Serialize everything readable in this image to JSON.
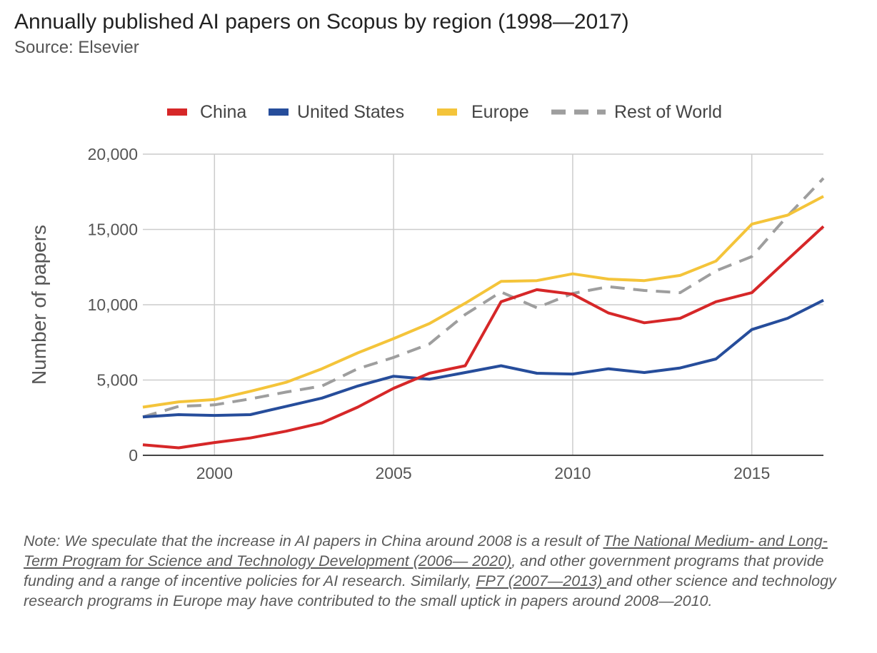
{
  "header": {
    "title": "Annually published AI papers on Scopus by region (1998—2017)",
    "subtitle": "Source: Elsevier"
  },
  "chart_data": {
    "type": "line",
    "title": "Annually published AI papers on Scopus by region (1998—2017)",
    "xlabel": "",
    "ylabel": "Number of papers",
    "x": [
      1998,
      1999,
      2000,
      2001,
      2002,
      2003,
      2004,
      2005,
      2006,
      2007,
      2008,
      2009,
      2010,
      2011,
      2012,
      2013,
      2014,
      2015,
      2016,
      2017
    ],
    "xlim": [
      1998,
      2017
    ],
    "ylim": [
      0,
      20000
    ],
    "x_ticks": [
      2000,
      2005,
      2010,
      2015
    ],
    "x_tick_labels": [
      "2000",
      "2005",
      "2010",
      "2015"
    ],
    "y_ticks": [
      0,
      5000,
      10000,
      15000,
      20000
    ],
    "y_tick_labels": [
      "0",
      "5,000",
      "10,000",
      "15,000",
      "20,000"
    ],
    "grid": true,
    "legend_position": "top",
    "series": [
      {
        "name": "China",
        "color": "#d62728",
        "dash": false,
        "values": [
          700,
          500,
          850,
          1150,
          1600,
          2150,
          3200,
          4450,
          5450,
          5950,
          10200,
          11000,
          10700,
          9450,
          8800,
          9100,
          10200,
          10800,
          13000,
          15200
        ]
      },
      {
        "name": "United States",
        "color": "#264d9b",
        "dash": false,
        "values": [
          2550,
          2700,
          2650,
          2700,
          3250,
          3800,
          4600,
          5250,
          5050,
          5500,
          5950,
          5450,
          5400,
          5750,
          5500,
          5800,
          6400,
          8350,
          9100,
          10300
        ]
      },
      {
        "name": "Europe",
        "color": "#f4c43a",
        "dash": false,
        "values": [
          3200,
          3550,
          3700,
          4250,
          4850,
          5750,
          6800,
          7750,
          8750,
          10100,
          11550,
          11600,
          12050,
          11700,
          11600,
          11950,
          12900,
          15350,
          15950,
          17200
        ]
      },
      {
        "name": "Rest of World",
        "color": "#9e9e9e",
        "dash": true,
        "values": [
          2550,
          3250,
          3350,
          3750,
          4200,
          4600,
          5750,
          6500,
          7400,
          9350,
          10850,
          9800,
          10750,
          11200,
          10950,
          10800,
          12250,
          13200,
          15900,
          18400
        ]
      }
    ]
  },
  "note": {
    "part1": "Note: We speculate that the increase in AI papers in China around 2008 is a result of ",
    "link1": "The National Medium- and Long-Term Program for Science and Technology Development (2006— 2020)",
    "part2": ", and other government programs that provide funding and a range of incentive policies for AI research. Similarly, ",
    "link2": "FP7 (2007—2013) ",
    "part3": "and other science and technology research programs in Europe may have contributed to the small uptick in papers around 2008—2010."
  }
}
